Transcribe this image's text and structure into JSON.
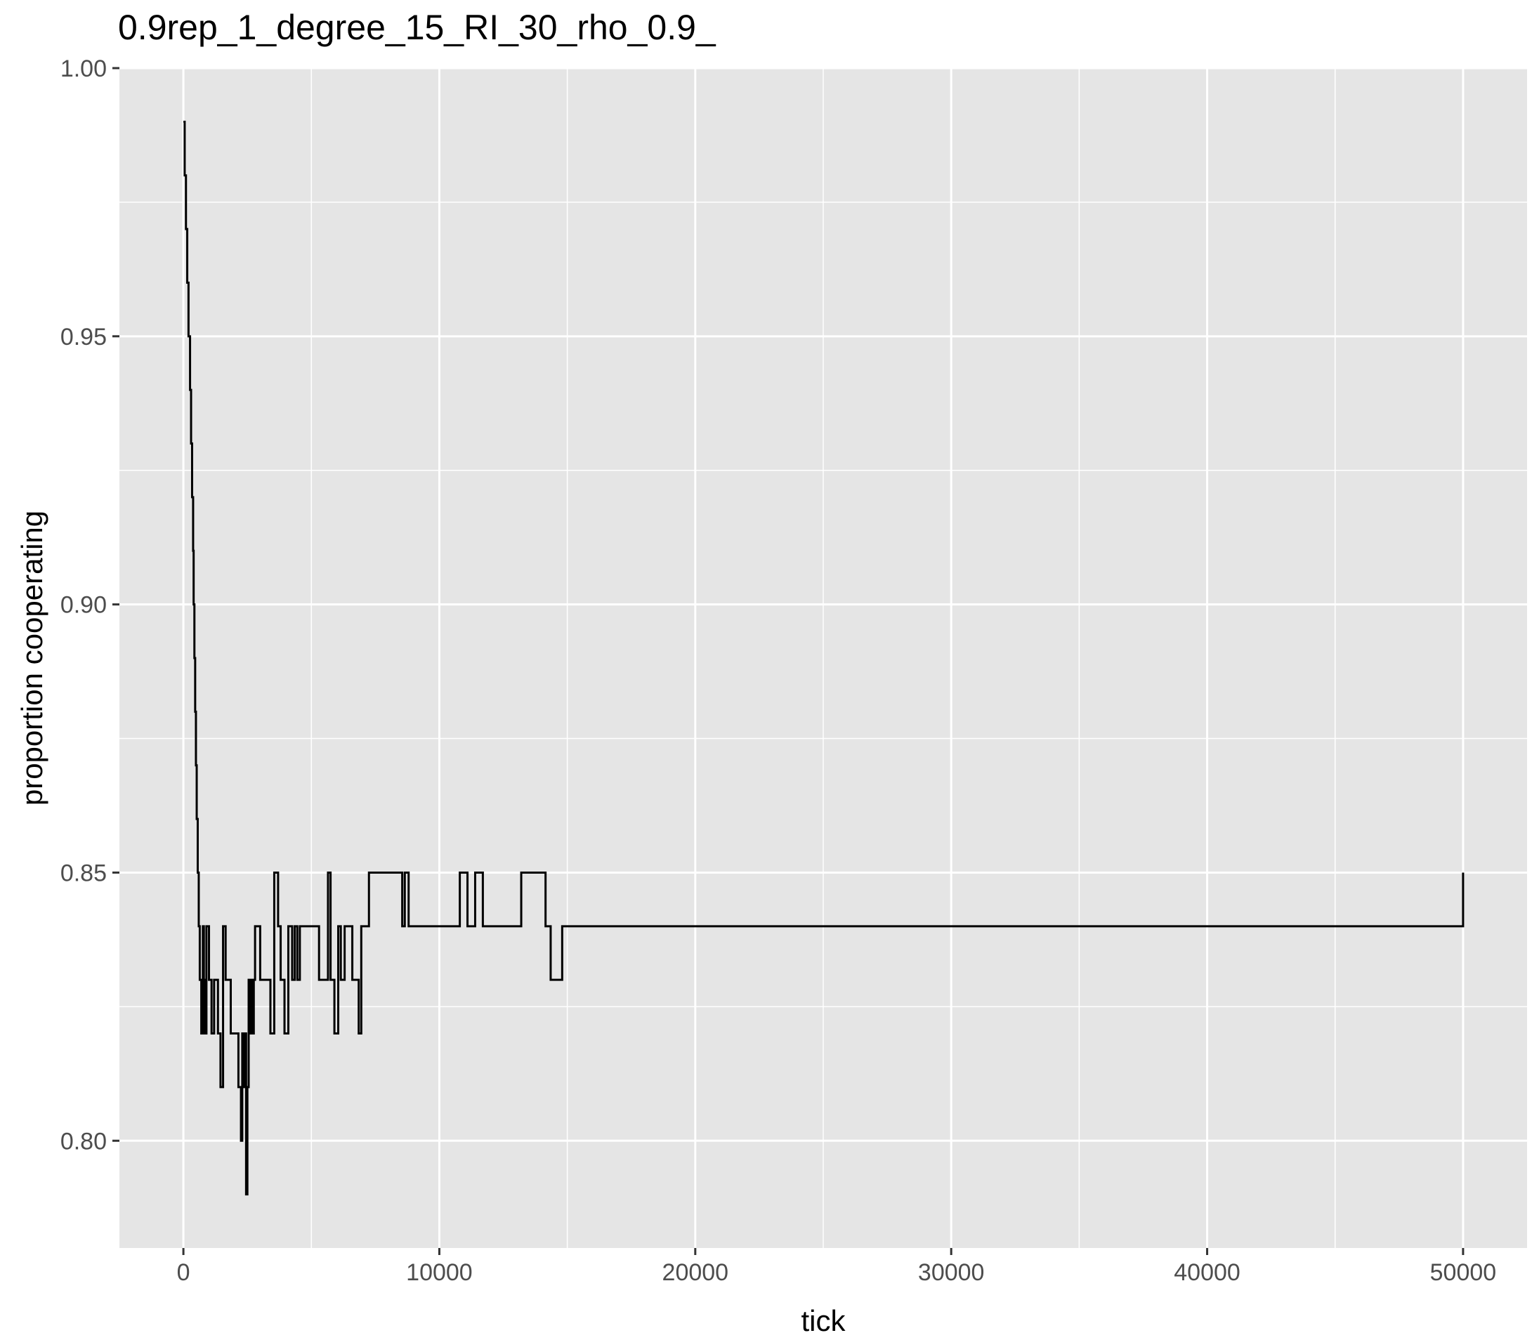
{
  "chart_data": {
    "type": "line",
    "title": "0.9rep_1_degree_15_RI_30_rho_0.9_",
    "xlabel": "tick",
    "ylabel": "proportion cooperating",
    "xlim": [
      -2500,
      52500
    ],
    "ylim": [
      0.78,
      1.0
    ],
    "x_ticks": [
      0,
      10000,
      20000,
      30000,
      40000,
      50000
    ],
    "x_tick_labels": [
      "0",
      "10000",
      "20000",
      "30000",
      "40000",
      "50000"
    ],
    "y_ticks": [
      0.8,
      0.85,
      0.9,
      0.95,
      1.0
    ],
    "y_tick_labels": [
      "0.80",
      "0.85",
      "0.90",
      "0.95",
      "1.00"
    ],
    "grid": true,
    "legend": "none",
    "colors": {
      "panel": "#e5e5e5",
      "grid": "#ffffff",
      "line": "#000000",
      "tick_text": "#4d4d4d"
    },
    "series": [
      {
        "step": true,
        "x": [
          0,
          50,
          100,
          150,
          200,
          260,
          300,
          340,
          380,
          400,
          430,
          460,
          490,
          520,
          560,
          600,
          640,
          700,
          760,
          800,
          840,
          900,
          1000,
          1100,
          1200,
          1350,
          1450,
          1550,
          1650,
          1750,
          1850,
          2000,
          2150,
          2250,
          2300,
          2350,
          2400,
          2450,
          2500,
          2550,
          2600,
          2650,
          2700,
          2750,
          2800,
          3000,
          3400,
          3550,
          3700,
          3800,
          3950,
          4100,
          4250,
          4350,
          4450,
          4550,
          4650,
          4800,
          5300,
          5650,
          5750,
          5900,
          6050,
          6150,
          6300,
          6600,
          6850,
          6950,
          7250,
          8550,
          8650,
          8800,
          10400,
          10800,
          11100,
          11400,
          11700,
          13200,
          14150,
          14250,
          14350,
          14800,
          50000
        ],
        "y": [
          0.99,
          0.98,
          0.97,
          0.96,
          0.95,
          0.94,
          0.93,
          0.92,
          0.91,
          0.9,
          0.89,
          0.88,
          0.87,
          0.86,
          0.85,
          0.84,
          0.83,
          0.82,
          0.84,
          0.83,
          0.82,
          0.84,
          0.83,
          0.82,
          0.83,
          0.82,
          0.81,
          0.84,
          0.83,
          0.83,
          0.82,
          0.82,
          0.81,
          0.8,
          0.82,
          0.81,
          0.82,
          0.79,
          0.81,
          0.83,
          0.82,
          0.83,
          0.82,
          0.83,
          0.84,
          0.83,
          0.82,
          0.85,
          0.84,
          0.83,
          0.82,
          0.84,
          0.83,
          0.84,
          0.83,
          0.84,
          0.84,
          0.84,
          0.83,
          0.85,
          0.83,
          0.82,
          0.84,
          0.83,
          0.84,
          0.83,
          0.82,
          0.84,
          0.85,
          0.84,
          0.85,
          0.84,
          0.84,
          0.85,
          0.84,
          0.85,
          0.84,
          0.85,
          0.84,
          0.84,
          0.83,
          0.84,
          0.85
        ]
      }
    ]
  }
}
